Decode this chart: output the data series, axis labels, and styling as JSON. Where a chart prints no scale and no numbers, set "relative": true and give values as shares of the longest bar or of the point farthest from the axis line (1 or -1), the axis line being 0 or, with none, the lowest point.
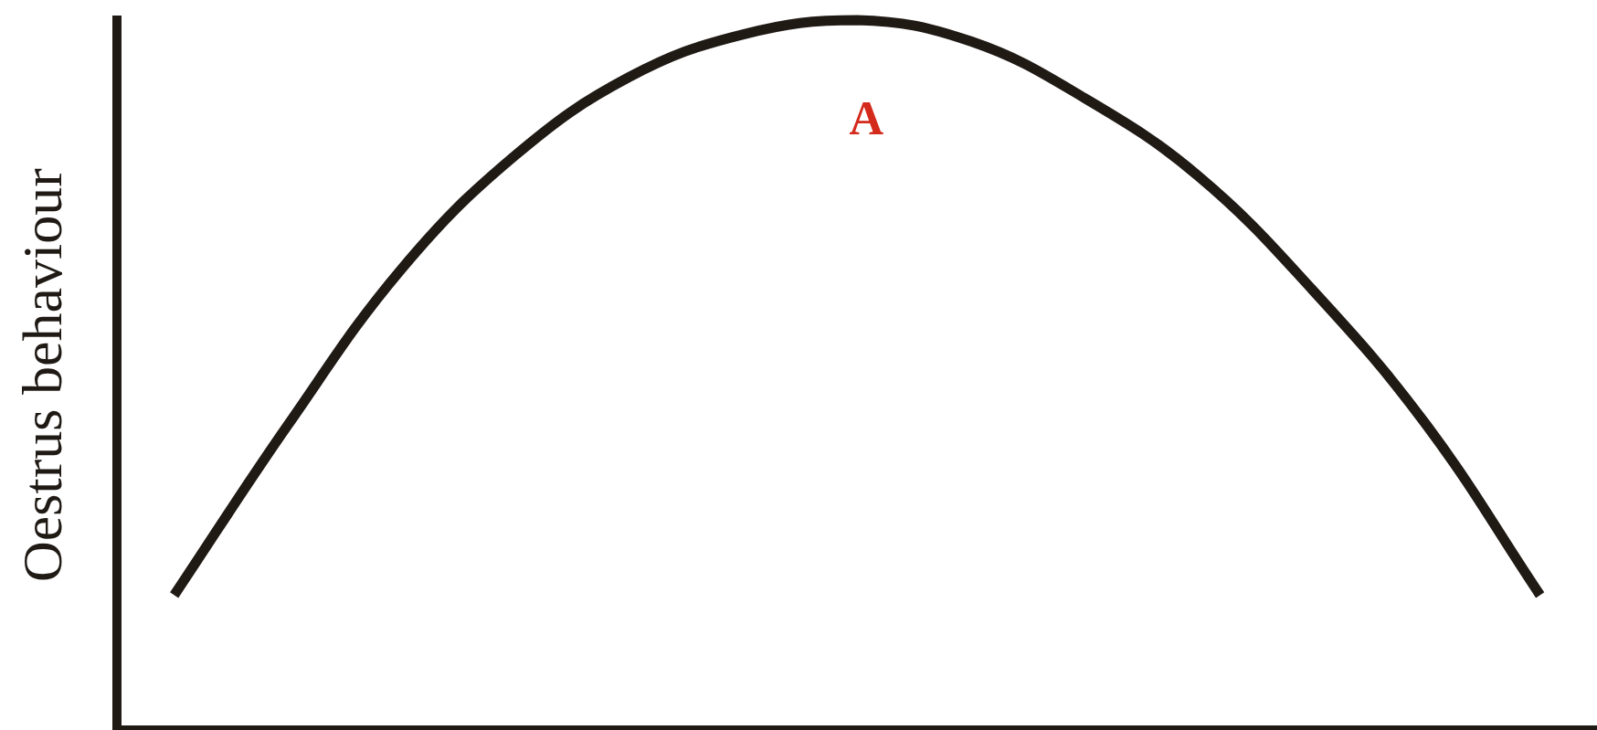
{
  "chart_data": {
    "type": "line",
    "relative": true,
    "ylabel": "Oestrus behaviour",
    "annotations": [
      "A"
    ],
    "categories": [
      null,
      null,
      null,
      null,
      null,
      null,
      null,
      null,
      null,
      null,
      null,
      null,
      null
    ],
    "series": [
      {
        "color": "#201a15",
        "values": [
          0.19,
          0.43,
          0.65,
          0.81,
          0.92,
          0.98,
          1.0,
          0.97,
          0.89,
          0.78,
          0.62,
          0.43,
          0.19
        ]
      }
    ],
    "grid": false,
    "legend": false,
    "marker": "none",
    "line_style": "solid",
    "tick_labels": false
  }
}
